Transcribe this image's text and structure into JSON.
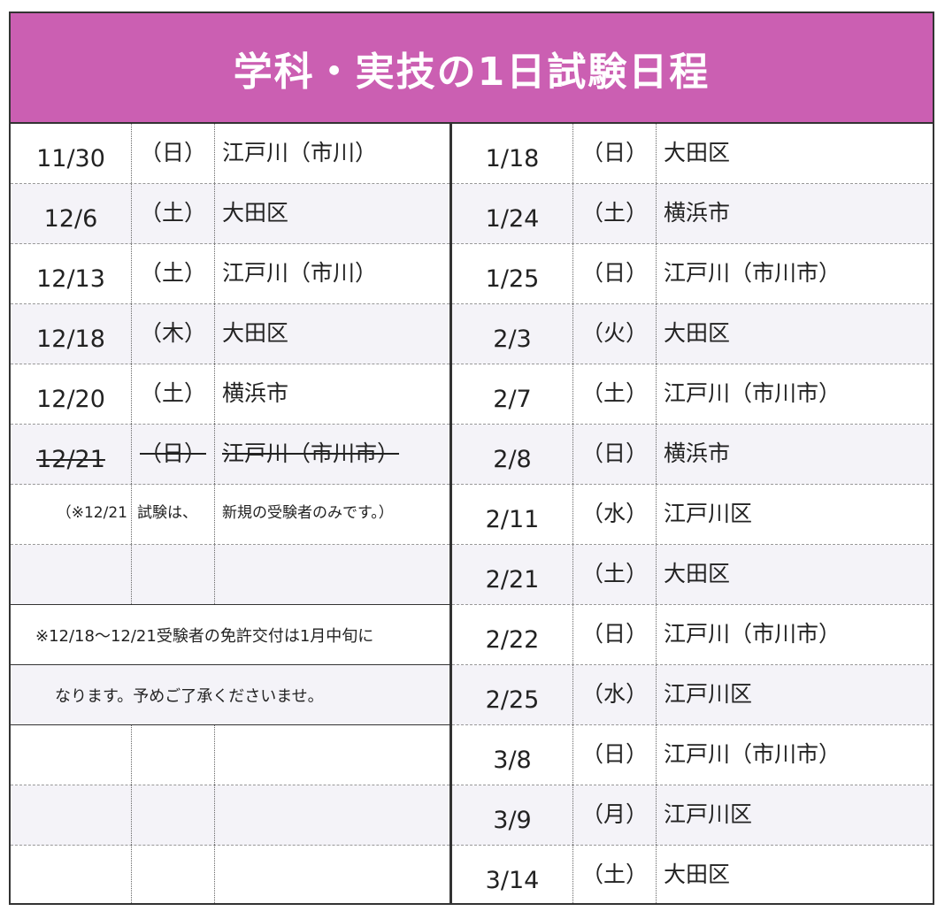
{
  "title": "学科・実技の1日試験日程",
  "left": {
    "rows": [
      {
        "date": "11/30",
        "day": "（日）",
        "place": "江戸川（市川）"
      },
      {
        "date": "12/6",
        "day": "（土）",
        "place": "大田区"
      },
      {
        "date": "12/13",
        "day": "（土）",
        "place": "江戸川（市川）"
      },
      {
        "date": "12/18",
        "day": "（木）",
        "place": "大田区"
      },
      {
        "date": "12/20",
        "day": "（土）",
        "place": "横浜市"
      },
      {
        "date": "12/21",
        "day": "（日）",
        "place": "江戸川（市川市）"
      }
    ],
    "note_row": {
      "c1": "（※12/21",
      "c2": "試験は、",
      "c3": "新規の受験者のみです。）"
    },
    "notice_line1": "※12/18〜12/21受験者の免許交付は1月中旬に",
    "notice_line2": "なります。予めご了承くださいませ。"
  },
  "right": {
    "rows": [
      {
        "date": "1/18",
        "day": "（日）",
        "place": "大田区"
      },
      {
        "date": "1/24",
        "day": "（土）",
        "place": "横浜市"
      },
      {
        "date": "1/25",
        "day": "（日）",
        "place": "江戸川（市川市）"
      },
      {
        "date": "2/3",
        "day": "（火）",
        "place": "大田区"
      },
      {
        "date": "2/7",
        "day": "（土）",
        "place": "江戸川（市川市）"
      },
      {
        "date": "2/8",
        "day": "（日）",
        "place": "横浜市"
      },
      {
        "date": "2/11",
        "day": "（水）",
        "place": "江戸川区"
      },
      {
        "date": "2/21",
        "day": "（土）",
        "place": "大田区"
      },
      {
        "date": "2/22",
        "day": "（日）",
        "place": "江戸川（市川市）"
      },
      {
        "date": "2/25",
        "day": "（水）",
        "place": "江戸川区"
      },
      {
        "date": "3/8",
        "day": "（日）",
        "place": "江戸川（市川市）"
      },
      {
        "date": "3/9",
        "day": "（月）",
        "place": "江戸川区"
      },
      {
        "date": "3/14",
        "day": "（土）",
        "place": "大田区"
      }
    ]
  }
}
